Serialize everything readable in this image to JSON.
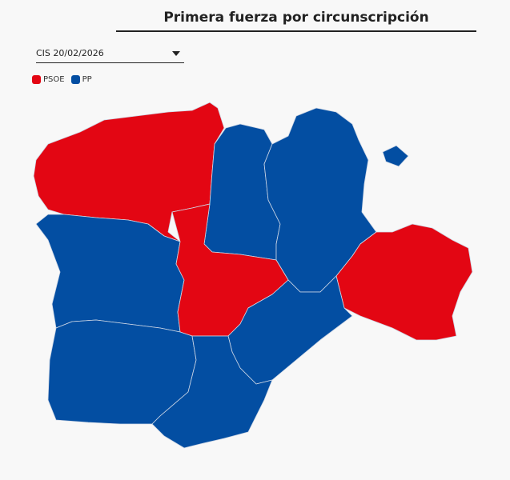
{
  "header": {
    "title": "Primera fuerza por circunscripción"
  },
  "selector": {
    "label": "CIS 20/02/2026"
  },
  "legend": [
    {
      "name": "PSOE",
      "color": "#e30613"
    },
    {
      "name": "PP",
      "color": "#034ea2"
    }
  ]
}
